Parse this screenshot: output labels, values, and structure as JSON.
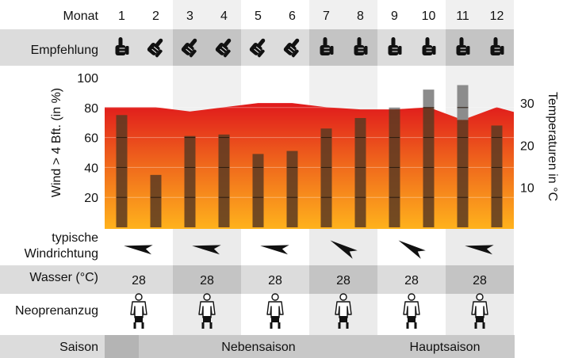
{
  "header": {
    "month_label": "Monat",
    "months": [
      "1",
      "2",
      "3",
      "4",
      "5",
      "6",
      "7",
      "8",
      "9",
      "10",
      "11",
      "12"
    ]
  },
  "recommendation": {
    "label": "Empfehlung",
    "icons": [
      "thumbs-up-icon",
      "thumbs-tilted-icon",
      "thumbs-tilted-icon",
      "thumbs-tilted-icon",
      "thumbs-tilted-icon",
      "thumbs-tilted-icon",
      "thumbs-up-icon",
      "thumbs-up-icon",
      "thumbs-up-icon",
      "thumbs-up-icon",
      "thumbs-up-icon",
      "thumbs-up-icon"
    ]
  },
  "chart_data": {
    "type": "bar",
    "categories": [
      "1",
      "2",
      "3",
      "4",
      "5",
      "6",
      "7",
      "8",
      "9",
      "10",
      "11",
      "12"
    ],
    "ylabel": "Wind > 4 Bft. (in %)",
    "ylabel_right": "Temperaturen in °C",
    "ylim": [
      0,
      110
    ],
    "yticks": [
      20,
      40,
      60,
      80,
      100
    ],
    "ylim_right": [
      0,
      40
    ],
    "yticks_right": [
      10,
      20,
      30
    ],
    "series": [
      {
        "values": [
          75,
          35,
          61,
          62,
          49,
          51,
          66,
          73,
          80,
          92,
          95,
          68
        ]
      },
      {
        "values": [
          29,
          29,
          28,
          29,
          30,
          30,
          29,
          28.5,
          28.5,
          29,
          26,
          29
        ]
      }
    ],
    "colors": {
      "bar": "#5a3a22",
      "bar_highlight": "#8c8c8c",
      "temp_top": "#e0191c",
      "temp_bottom": "#ffb21c"
    }
  },
  "wind_direction": {
    "label_line1": "typische",
    "label_line2": "Windrichtung",
    "angles": [
      8,
      8,
      8,
      30,
      30,
      8
    ]
  },
  "water": {
    "label": "Wasser (°C)",
    "values": [
      "28",
      "28",
      "28",
      "28",
      "28",
      "28"
    ]
  },
  "wetsuit": {
    "label": "Neoprenanzug",
    "icons": [
      "wetsuit-shorty-icon",
      "wetsuit-shorty-icon",
      "wetsuit-shorty-icon",
      "wetsuit-shorty-icon",
      "wetsuit-shorty-icon",
      "wetsuit-shorty-icon"
    ]
  },
  "season": {
    "label": "Saison",
    "neben": "Nebensaison",
    "haupt": "Hauptsaison"
  }
}
